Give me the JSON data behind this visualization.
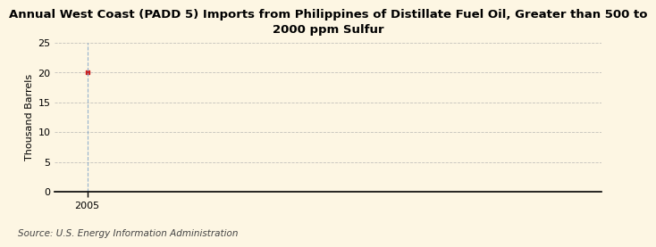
{
  "title": "Annual West Coast (PADD 5) Imports from Philippines of Distillate Fuel Oil, Greater than 500 to\n2000 ppm Sulfur",
  "ylabel": "Thousand Barrels",
  "source": "Source: U.S. Energy Information Administration",
  "background_color": "#fdf6e3",
  "plot_background_color": "#fdf6e3",
  "data_x": [
    2005
  ],
  "data_y": [
    20
  ],
  "marker_color": "#cc2222",
  "xlim": [
    2004.4,
    2014.5
  ],
  "ylim": [
    0,
    25
  ],
  "yticks": [
    0,
    5,
    10,
    15,
    20,
    25
  ],
  "xticks": [
    2005
  ],
  "grid_color": "#aaaaaa",
  "vline_color": "#88aacc",
  "title_fontsize": 9.5,
  "axis_fontsize": 8,
  "source_fontsize": 7.5
}
